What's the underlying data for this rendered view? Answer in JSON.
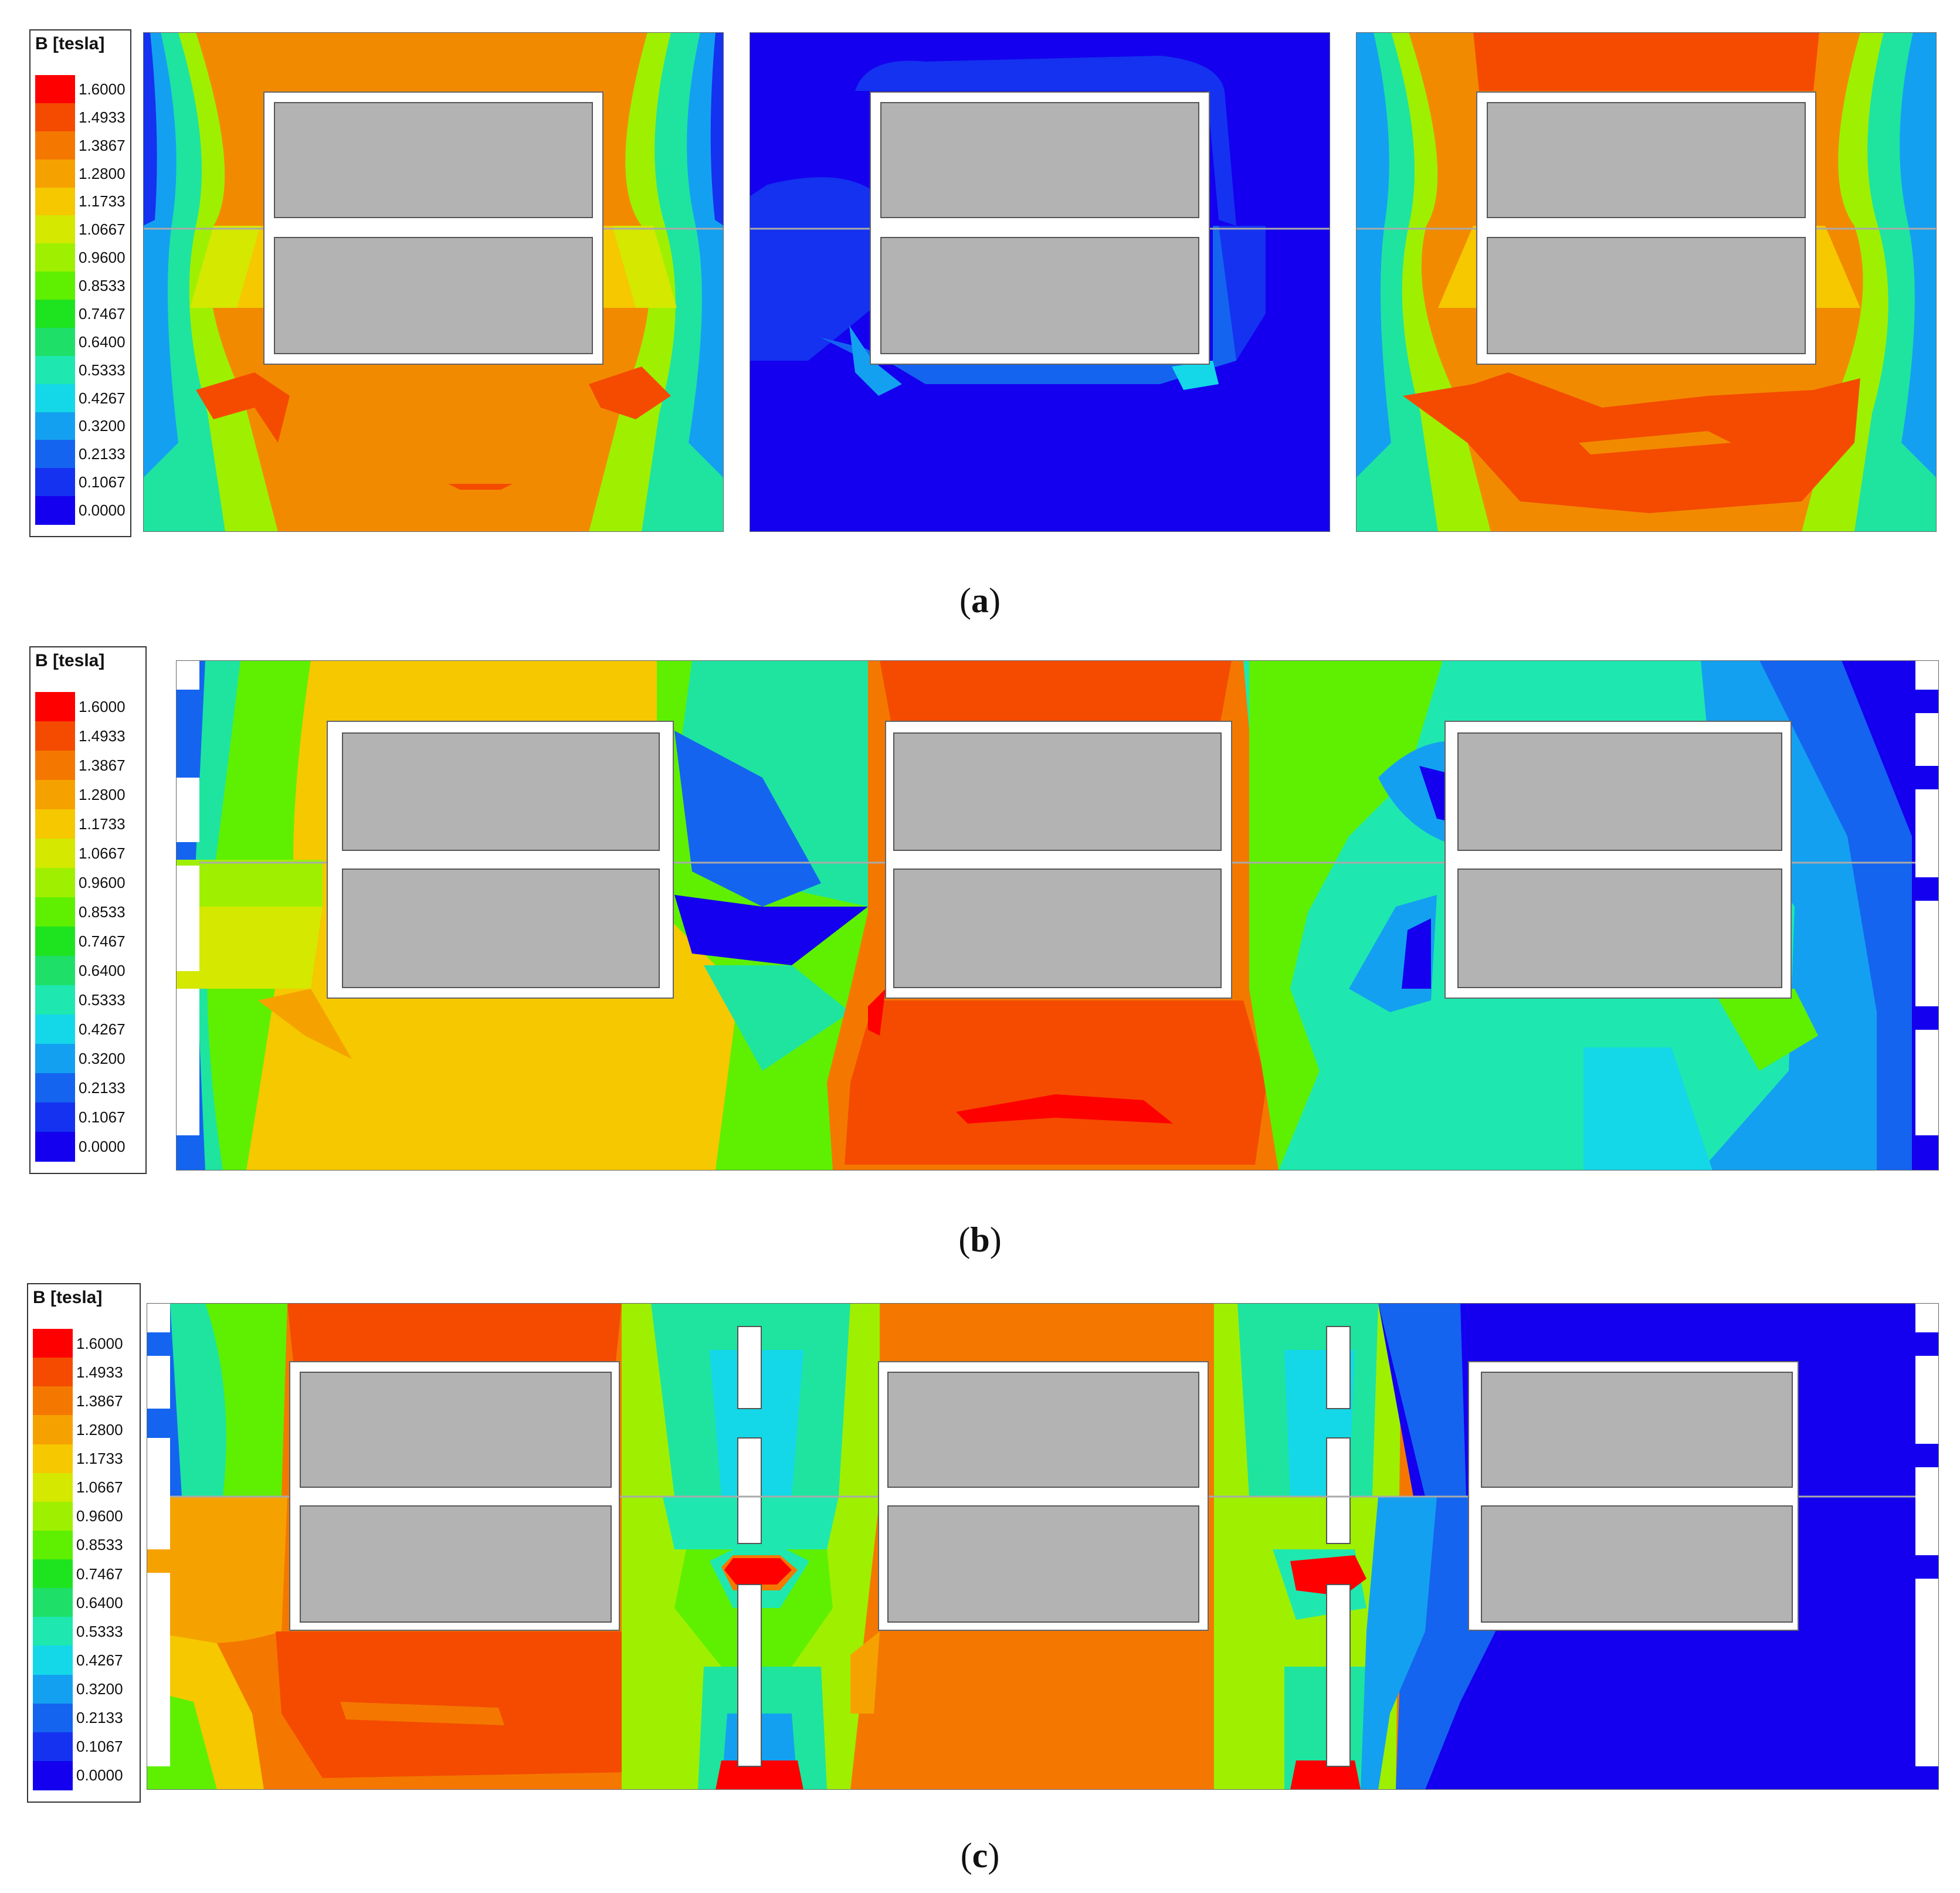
{
  "legend": {
    "title": "B [tesla]",
    "ticks": [
      "1.6000",
      "1.4933",
      "1.3867",
      "1.2800",
      "1.1733",
      "1.0667",
      "0.9600",
      "0.8533",
      "0.7467",
      "0.6400",
      "0.5333",
      "0.4267",
      "0.3200",
      "0.2133",
      "0.1067",
      "0.0000"
    ],
    "colors": [
      "#ff0000",
      "#f44b00",
      "#f47800",
      "#f5a200",
      "#f5c800",
      "#d4e800",
      "#9ef000",
      "#5ef000",
      "#1ee420",
      "#1ee068",
      "#1ee8b0",
      "#14d8e8",
      "#14a0f0",
      "#1464f0",
      "#1432f0",
      "#1400ee"
    ]
  },
  "captions": {
    "a_open": "(",
    "a_letter": "a",
    "a_close": ")",
    "b_open": "(",
    "b_letter": "b",
    "b_close": ")",
    "c_open": "(",
    "c_letter": "c",
    "c_close": ")"
  }
}
